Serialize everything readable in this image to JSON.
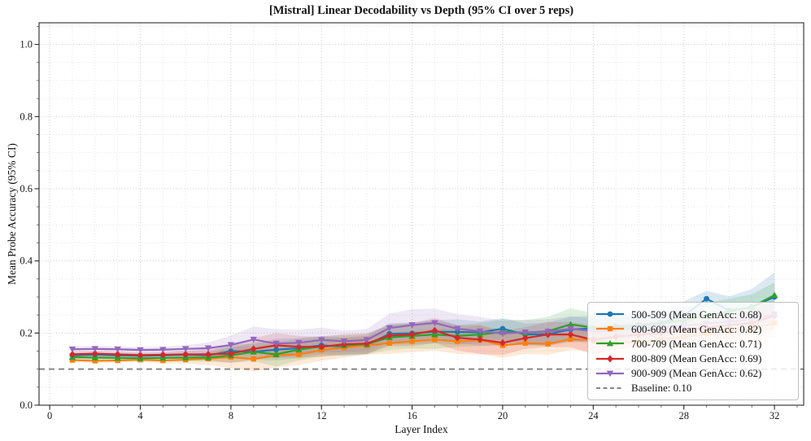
{
  "chart_data": {
    "type": "line",
    "title": "[Mistral] Linear Decodability vs Depth (95% CI over 5 reps)",
    "xlabel": "Layer Index",
    "ylabel": "Mean Probe Accuracy (95% CI)",
    "x": [
      1,
      2,
      3,
      4,
      5,
      6,
      7,
      8,
      9,
      10,
      11,
      12,
      13,
      14,
      15,
      16,
      17,
      18,
      19,
      20,
      21,
      22,
      23,
      24,
      25,
      26,
      27,
      28,
      29,
      30,
      31,
      32
    ],
    "xlim": [
      -0.47,
      33.29
    ],
    "ylim": [
      0,
      1.06
    ],
    "xticks": [
      0,
      4,
      8,
      12,
      16,
      20,
      24,
      28,
      32
    ],
    "yticks": [
      0.0,
      0.2,
      0.4,
      0.6,
      0.8,
      1.0
    ],
    "grid": "dotted minor grid every 1 layer / 0.05 accuracy",
    "legend_position": "lower right",
    "series": [
      {
        "name": "500-509 (Mean GenAcc: 0.68)",
        "color": "#1f77b4",
        "marker": "circle",
        "values": [
          0.138,
          0.14,
          0.138,
          0.137,
          0.138,
          0.14,
          0.138,
          0.15,
          0.148,
          0.154,
          0.158,
          0.166,
          0.162,
          0.166,
          0.198,
          0.199,
          0.204,
          0.203,
          0.202,
          0.212,
          0.196,
          0.197,
          0.21,
          0.213,
          0.218,
          0.222,
          0.228,
          0.248,
          0.295,
          0.262,
          0.272,
          0.3
        ],
        "ci": [
          0.008,
          0.008,
          0.008,
          0.008,
          0.008,
          0.01,
          0.012,
          0.018,
          0.022,
          0.03,
          0.028,
          0.025,
          0.025,
          0.025,
          0.03,
          0.03,
          0.032,
          0.035,
          0.03,
          0.03,
          0.03,
          0.032,
          0.035,
          0.035,
          0.035,
          0.035,
          0.035,
          0.04,
          0.022,
          0.04,
          0.05,
          0.068
        ]
      },
      {
        "name": "600-609 (Mean GenAcc: 0.82)",
        "color": "#ff7f0e",
        "marker": "square",
        "values": [
          0.125,
          0.123,
          0.124,
          0.126,
          0.124,
          0.126,
          0.129,
          0.133,
          0.128,
          0.139,
          0.141,
          0.153,
          0.16,
          0.166,
          0.172,
          0.177,
          0.182,
          0.177,
          0.181,
          0.166,
          0.172,
          0.17,
          0.183,
          0.18,
          0.172,
          0.176,
          0.182,
          0.19,
          0.198,
          0.205,
          0.212,
          0.228
        ],
        "ci": [
          0.006,
          0.006,
          0.006,
          0.006,
          0.008,
          0.01,
          0.018,
          0.03,
          0.034,
          0.034,
          0.03,
          0.03,
          0.028,
          0.026,
          0.03,
          0.03,
          0.03,
          0.035,
          0.04,
          0.035,
          0.03,
          0.03,
          0.03,
          0.03,
          0.03,
          0.03,
          0.03,
          0.03,
          0.032,
          0.034,
          0.036,
          0.04
        ]
      },
      {
        "name": "700-709 (Mean GenAcc: 0.71)",
        "color": "#2ca02c",
        "marker": "triangle-up",
        "values": [
          0.133,
          0.132,
          0.131,
          0.13,
          0.131,
          0.132,
          0.132,
          0.138,
          0.148,
          0.141,
          0.154,
          0.163,
          0.166,
          0.169,
          0.188,
          0.192,
          0.196,
          0.192,
          0.196,
          0.203,
          0.201,
          0.205,
          0.224,
          0.215,
          0.212,
          0.218,
          0.226,
          0.236,
          0.248,
          0.26,
          0.272,
          0.305
        ],
        "ci": [
          0.007,
          0.008,
          0.008,
          0.008,
          0.01,
          0.01,
          0.012,
          0.02,
          0.026,
          0.034,
          0.03,
          0.028,
          0.028,
          0.028,
          0.035,
          0.035,
          0.04,
          0.03,
          0.032,
          0.035,
          0.035,
          0.04,
          0.045,
          0.04,
          0.036,
          0.035,
          0.035,
          0.035,
          0.035,
          0.035,
          0.035,
          0.035
        ]
      },
      {
        "name": "800-809 (Mean GenAcc: 0.69)",
        "color": "#d62728",
        "marker": "diamond",
        "values": [
          0.141,
          0.143,
          0.141,
          0.139,
          0.14,
          0.141,
          0.141,
          0.143,
          0.156,
          0.166,
          0.162,
          0.162,
          0.169,
          0.171,
          0.193,
          0.196,
          0.207,
          0.187,
          0.182,
          0.173,
          0.186,
          0.196,
          0.196,
          0.181,
          0.19,
          0.195,
          0.201,
          0.208,
          0.215,
          0.222,
          0.228,
          0.248
        ],
        "ci": [
          0.008,
          0.008,
          0.008,
          0.008,
          0.008,
          0.01,
          0.016,
          0.026,
          0.03,
          0.034,
          0.03,
          0.028,
          0.028,
          0.028,
          0.03,
          0.032,
          0.035,
          0.035,
          0.04,
          0.034,
          0.03,
          0.035,
          0.035,
          0.04,
          0.035,
          0.035,
          0.035,
          0.035,
          0.035,
          0.035,
          0.035,
          0.04
        ]
      },
      {
        "name": "900-909 (Mean GenAcc: 0.62)",
        "color": "#9467bd",
        "marker": "triangle-down",
        "values": [
          0.155,
          0.156,
          0.155,
          0.153,
          0.154,
          0.156,
          0.158,
          0.167,
          0.182,
          0.171,
          0.173,
          0.181,
          0.177,
          0.181,
          0.214,
          0.222,
          0.228,
          0.212,
          0.205,
          0.199,
          0.202,
          0.204,
          0.212,
          0.205,
          0.208,
          0.212,
          0.216,
          0.22,
          0.226,
          0.232,
          0.238,
          0.252
        ],
        "ci": [
          0.008,
          0.008,
          0.008,
          0.008,
          0.008,
          0.01,
          0.016,
          0.026,
          0.036,
          0.04,
          0.036,
          0.034,
          0.03,
          0.03,
          0.04,
          0.044,
          0.04,
          0.04,
          0.04,
          0.035,
          0.034,
          0.034,
          0.035,
          0.035,
          0.035,
          0.035,
          0.035,
          0.035,
          0.035,
          0.035,
          0.036,
          0.04
        ]
      }
    ],
    "baseline": {
      "label": "Baseline: 0.10",
      "value": 0.1,
      "color": "#888888",
      "style": "dashed"
    }
  }
}
